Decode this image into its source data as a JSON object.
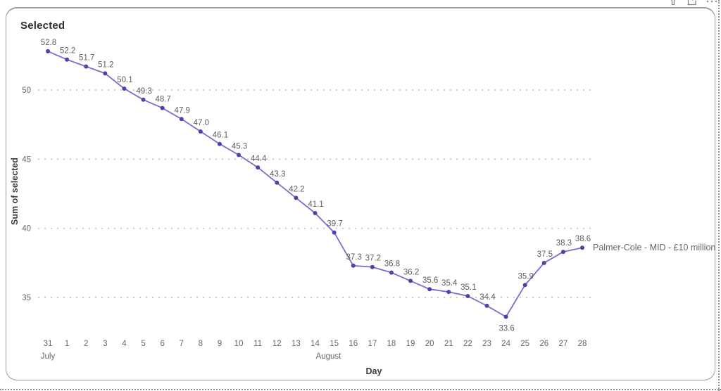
{
  "visual": {
    "title": "Selected",
    "header_icons": [
      {
        "name": "filter-icon"
      },
      {
        "name": "focus-mode-icon"
      },
      {
        "name": "more-options-icon"
      }
    ]
  },
  "chart_data": {
    "type": "line",
    "title": "Selected",
    "xlabel": "Day",
    "ylabel": "Sum of selected",
    "categories": [
      "31",
      "1",
      "2",
      "3",
      "4",
      "5",
      "6",
      "7",
      "8",
      "9",
      "10",
      "11",
      "12",
      "13",
      "14",
      "15",
      "16",
      "17",
      "18",
      "19",
      "20",
      "21",
      "22",
      "23",
      "24",
      "25",
      "26",
      "27",
      "28"
    ],
    "month_labels": [
      {
        "label": "July",
        "index": 0
      },
      {
        "label": "August",
        "index": 14.7
      }
    ],
    "series": [
      {
        "name": "Palmer-Cole - MID  - £10 million",
        "values": [
          52.8,
          52.2,
          51.7,
          51.2,
          50.1,
          49.3,
          48.7,
          47.9,
          47.0,
          46.1,
          45.3,
          44.4,
          43.3,
          42.2,
          41.1,
          39.7,
          37.3,
          37.2,
          36.8,
          36.2,
          35.6,
          35.4,
          35.1,
          34.4,
          33.6,
          35.9,
          37.5,
          38.3,
          38.6
        ]
      }
    ],
    "y_ticks": [
      35,
      40,
      45,
      50
    ],
    "ylim": [
      33,
      54
    ],
    "grid": {
      "horizontal": "dotted",
      "vertical": "none"
    },
    "legend": "none - series labeled at line end",
    "data_labels": "shown on all points, one decimal",
    "label_below_indices": [
      24
    ],
    "colors": {
      "line": "#7e6bd0",
      "marker": "#5140a8",
      "data_label": "#5f5f5f",
      "tick_label": "#68686b",
      "axis_title": "#3d3d3d",
      "series_label": "#666666",
      "grid": "#c8c8c8"
    }
  }
}
